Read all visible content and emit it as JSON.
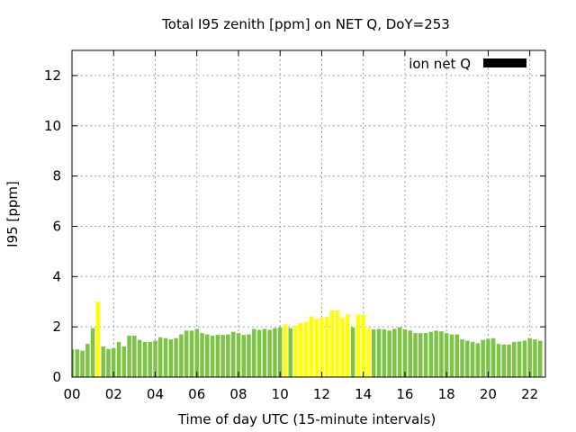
{
  "chart_data": {
    "type": "bar",
    "title": "Total I95 zenith [ppm] on NET Q, DoY=253",
    "xlabel": "Time of day UTC (15-minute intervals)",
    "ylabel": "I95 [ppm]",
    "x_ticks": [
      "00",
      "02",
      "04",
      "06",
      "08",
      "10",
      "12",
      "14",
      "16",
      "18",
      "20",
      "22"
    ],
    "x_tick_hours": [
      0,
      2,
      4,
      6,
      8,
      10,
      12,
      14,
      16,
      18,
      20,
      22
    ],
    "y_ticks": [
      "0",
      "2",
      "4",
      "6",
      "8",
      "10",
      "12"
    ],
    "y_tick_values": [
      0,
      2,
      4,
      6,
      8,
      10,
      12
    ],
    "xlim": [
      0,
      22.75
    ],
    "ylim": [
      0,
      13
    ],
    "grid": true,
    "legend": {
      "label": "ion net Q",
      "placement": "top-right",
      "color": "#000000"
    },
    "colors": {
      "normal": "#7cc444",
      "elevated": "#ffff00"
    },
    "bars": [
      {
        "hour": 0.0,
        "value": 1.1,
        "class": "normal"
      },
      {
        "hour": 0.25,
        "value": 1.1,
        "class": "normal"
      },
      {
        "hour": 0.5,
        "value": 1.05,
        "class": "normal"
      },
      {
        "hour": 0.75,
        "value": 1.32,
        "class": "normal"
      },
      {
        "hour": 1.0,
        "value": 1.95,
        "class": "normal"
      },
      {
        "hour": 1.25,
        "value": 3.0,
        "class": "elevated"
      },
      {
        "hour": 1.5,
        "value": 1.22,
        "class": "normal"
      },
      {
        "hour": 1.75,
        "value": 1.12,
        "class": "normal"
      },
      {
        "hour": 2.0,
        "value": 1.15,
        "class": "normal"
      },
      {
        "hour": 2.25,
        "value": 1.4,
        "class": "normal"
      },
      {
        "hour": 2.5,
        "value": 1.22,
        "class": "normal"
      },
      {
        "hour": 2.75,
        "value": 1.65,
        "class": "normal"
      },
      {
        "hour": 3.0,
        "value": 1.65,
        "class": "normal"
      },
      {
        "hour": 3.25,
        "value": 1.48,
        "class": "normal"
      },
      {
        "hour": 3.5,
        "value": 1.4,
        "class": "normal"
      },
      {
        "hour": 3.75,
        "value": 1.4,
        "class": "normal"
      },
      {
        "hour": 4.0,
        "value": 1.45,
        "class": "normal"
      },
      {
        "hour": 4.25,
        "value": 1.58,
        "class": "normal"
      },
      {
        "hour": 4.5,
        "value": 1.55,
        "class": "normal"
      },
      {
        "hour": 4.75,
        "value": 1.5,
        "class": "normal"
      },
      {
        "hour": 5.0,
        "value": 1.55,
        "class": "normal"
      },
      {
        "hour": 5.25,
        "value": 1.7,
        "class": "normal"
      },
      {
        "hour": 5.5,
        "value": 1.85,
        "class": "normal"
      },
      {
        "hour": 5.75,
        "value": 1.85,
        "class": "normal"
      },
      {
        "hour": 6.0,
        "value": 1.92,
        "class": "normal"
      },
      {
        "hour": 6.25,
        "value": 1.75,
        "class": "normal"
      },
      {
        "hour": 6.5,
        "value": 1.7,
        "class": "normal"
      },
      {
        "hour": 6.75,
        "value": 1.65,
        "class": "normal"
      },
      {
        "hour": 7.0,
        "value": 1.68,
        "class": "normal"
      },
      {
        "hour": 7.25,
        "value": 1.68,
        "class": "normal"
      },
      {
        "hour": 7.5,
        "value": 1.7,
        "class": "normal"
      },
      {
        "hour": 7.75,
        "value": 1.8,
        "class": "normal"
      },
      {
        "hour": 8.0,
        "value": 1.75,
        "class": "normal"
      },
      {
        "hour": 8.25,
        "value": 1.68,
        "class": "normal"
      },
      {
        "hour": 8.5,
        "value": 1.7,
        "class": "normal"
      },
      {
        "hour": 8.75,
        "value": 1.92,
        "class": "normal"
      },
      {
        "hour": 9.0,
        "value": 1.88,
        "class": "normal"
      },
      {
        "hour": 9.25,
        "value": 1.92,
        "class": "normal"
      },
      {
        "hour": 9.5,
        "value": 1.88,
        "class": "normal"
      },
      {
        "hour": 9.75,
        "value": 1.95,
        "class": "normal"
      },
      {
        "hour": 10.0,
        "value": 1.98,
        "class": "normal"
      },
      {
        "hour": 10.25,
        "value": 2.1,
        "class": "elevated"
      },
      {
        "hour": 10.5,
        "value": 1.95,
        "class": "normal"
      },
      {
        "hour": 10.75,
        "value": 2.05,
        "class": "elevated"
      },
      {
        "hour": 11.0,
        "value": 2.15,
        "class": "elevated"
      },
      {
        "hour": 11.25,
        "value": 2.2,
        "class": "elevated"
      },
      {
        "hour": 11.5,
        "value": 2.42,
        "class": "elevated"
      },
      {
        "hour": 11.75,
        "value": 2.32,
        "class": "elevated"
      },
      {
        "hour": 12.0,
        "value": 2.35,
        "class": "elevated"
      },
      {
        "hour": 12.25,
        "value": 2.4,
        "class": "elevated"
      },
      {
        "hour": 12.5,
        "value": 2.65,
        "class": "elevated"
      },
      {
        "hour": 12.75,
        "value": 2.65,
        "class": "elevated"
      },
      {
        "hour": 13.0,
        "value": 2.35,
        "class": "elevated"
      },
      {
        "hour": 13.25,
        "value": 2.5,
        "class": "elevated"
      },
      {
        "hour": 13.5,
        "value": 1.98,
        "class": "normal"
      },
      {
        "hour": 13.75,
        "value": 2.48,
        "class": "elevated"
      },
      {
        "hour": 14.0,
        "value": 2.48,
        "class": "elevated"
      },
      {
        "hour": 14.25,
        "value": 1.95,
        "class": "elevated"
      },
      {
        "hour": 14.5,
        "value": 1.9,
        "class": "normal"
      },
      {
        "hour": 14.75,
        "value": 1.92,
        "class": "normal"
      },
      {
        "hour": 15.0,
        "value": 1.9,
        "class": "normal"
      },
      {
        "hour": 15.25,
        "value": 1.85,
        "class": "normal"
      },
      {
        "hour": 15.5,
        "value": 1.92,
        "class": "normal"
      },
      {
        "hour": 15.75,
        "value": 1.98,
        "class": "normal"
      },
      {
        "hour": 16.0,
        "value": 1.9,
        "class": "normal"
      },
      {
        "hour": 16.25,
        "value": 1.85,
        "class": "normal"
      },
      {
        "hour": 16.5,
        "value": 1.75,
        "class": "normal"
      },
      {
        "hour": 16.75,
        "value": 1.75,
        "class": "normal"
      },
      {
        "hour": 17.0,
        "value": 1.75,
        "class": "normal"
      },
      {
        "hour": 17.25,
        "value": 1.8,
        "class": "normal"
      },
      {
        "hour": 17.5,
        "value": 1.85,
        "class": "normal"
      },
      {
        "hour": 17.75,
        "value": 1.82,
        "class": "normal"
      },
      {
        "hour": 18.0,
        "value": 1.75,
        "class": "normal"
      },
      {
        "hour": 18.25,
        "value": 1.7,
        "class": "normal"
      },
      {
        "hour": 18.5,
        "value": 1.7,
        "class": "normal"
      },
      {
        "hour": 18.75,
        "value": 1.5,
        "class": "normal"
      },
      {
        "hour": 19.0,
        "value": 1.45,
        "class": "normal"
      },
      {
        "hour": 19.25,
        "value": 1.4,
        "class": "normal"
      },
      {
        "hour": 19.5,
        "value": 1.35,
        "class": "normal"
      },
      {
        "hour": 19.75,
        "value": 1.48,
        "class": "normal"
      },
      {
        "hour": 20.0,
        "value": 1.52,
        "class": "normal"
      },
      {
        "hour": 20.25,
        "value": 1.55,
        "class": "normal"
      },
      {
        "hour": 20.5,
        "value": 1.32,
        "class": "normal"
      },
      {
        "hour": 20.75,
        "value": 1.3,
        "class": "normal"
      },
      {
        "hour": 21.0,
        "value": 1.3,
        "class": "normal"
      },
      {
        "hour": 21.25,
        "value": 1.4,
        "class": "normal"
      },
      {
        "hour": 21.5,
        "value": 1.42,
        "class": "normal"
      },
      {
        "hour": 21.75,
        "value": 1.45,
        "class": "normal"
      },
      {
        "hour": 22.0,
        "value": 1.55,
        "class": "normal"
      },
      {
        "hour": 22.25,
        "value": 1.5,
        "class": "normal"
      },
      {
        "hour": 22.5,
        "value": 1.45,
        "class": "normal"
      }
    ]
  }
}
